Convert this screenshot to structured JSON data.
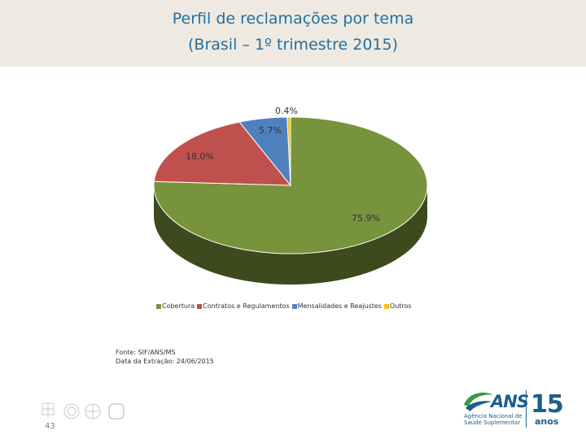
{
  "header": {
    "title_line1": "Perfil de reclamações por tema",
    "title_line2": "(Brasil – 1º trimestre 2015)"
  },
  "chart_data": {
    "type": "pie",
    "style": "3d",
    "categories": [
      "Cobertura",
      "Contratos e Regulamentos",
      "Mensalidades e Reajustes",
      "Outros"
    ],
    "values": [
      75.9,
      18.0,
      5.7,
      0.4
    ],
    "labels": [
      "75.9%",
      "18.0%",
      "5.7%",
      "0.4%"
    ],
    "colors": [
      "#77933c",
      "#c0504d",
      "#4f81bd",
      "#f2c314"
    ],
    "legend_position": "bottom"
  },
  "source": {
    "line1": "Fonte: SIF/ANS/MS",
    "line2": "Data da Extração: 24/06/2015"
  },
  "footer": {
    "page_number": "43",
    "logo_name": "ANS",
    "logo_sub": "Agência Nacional de Saúde Suplementar",
    "logo_years": "15",
    "logo_years_word": "anos"
  }
}
